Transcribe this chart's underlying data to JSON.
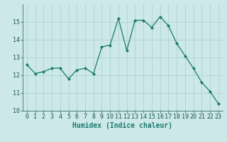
{
  "x": [
    0,
    1,
    2,
    3,
    4,
    5,
    6,
    7,
    8,
    9,
    10,
    11,
    12,
    13,
    14,
    15,
    16,
    17,
    18,
    19,
    20,
    21,
    22,
    23
  ],
  "y": [
    12.6,
    12.1,
    12.2,
    12.4,
    12.4,
    11.8,
    12.3,
    12.4,
    12.1,
    13.6,
    13.7,
    15.2,
    13.4,
    15.1,
    15.1,
    14.7,
    15.3,
    14.8,
    13.8,
    13.1,
    12.4,
    11.6,
    11.1,
    10.4
  ],
  "xlabel": "Humidex (Indice chaleur)",
  "ylim": [
    10,
    16
  ],
  "yticks": [
    10,
    11,
    12,
    13,
    14,
    15
  ],
  "xticks": [
    0,
    1,
    2,
    3,
    4,
    5,
    6,
    7,
    8,
    9,
    10,
    11,
    12,
    13,
    14,
    15,
    16,
    17,
    18,
    19,
    20,
    21,
    22,
    23
  ],
  "line_color": "#1a7a6e",
  "bg_color": "#cce8e8",
  "grid_color": "#aacfcf",
  "tick_label_fontsize": 6,
  "xlabel_fontsize": 7,
  "marker_size": 2.0
}
